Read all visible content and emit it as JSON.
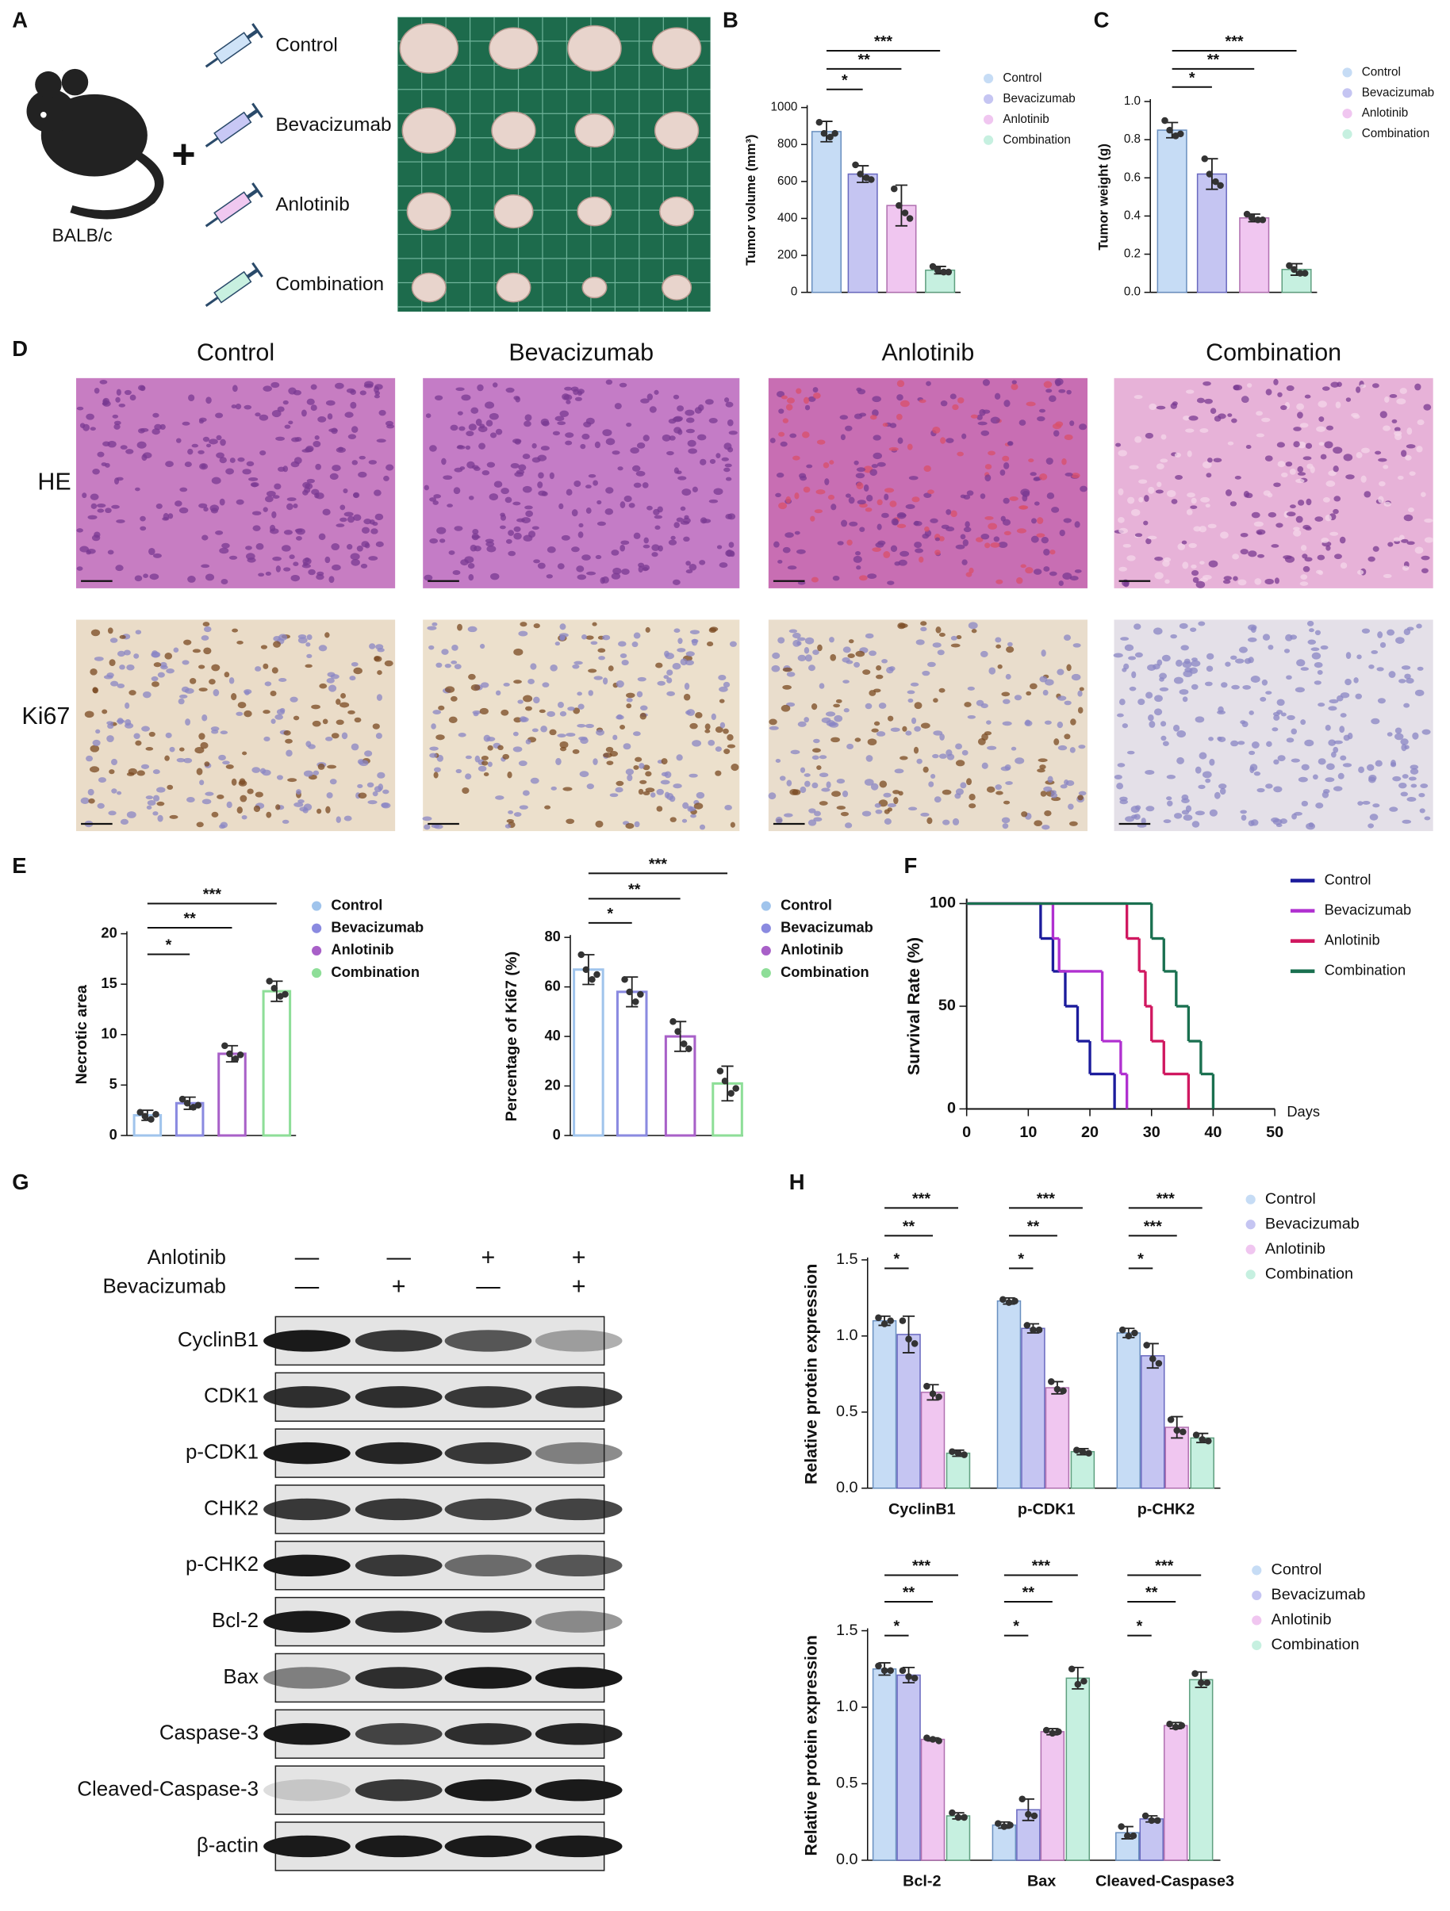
{
  "panels": {
    "letters": [
      "A",
      "B",
      "C",
      "D",
      "E",
      "F",
      "G",
      "H"
    ],
    "a": {
      "strain": "BALB/c",
      "plus": "+",
      "groups": [
        "Control",
        "Bevacizumab",
        "Anlotinib",
        "Combination"
      ]
    },
    "d": {
      "columns": [
        "Control",
        "Bevacizumab",
        "Anlotinib",
        "Combination"
      ],
      "rows": [
        "HE",
        "Ki67"
      ]
    },
    "g": {
      "treatments": [
        {
          "name": "Anlotinib",
          "signs": [
            "—",
            "—",
            "+",
            "+"
          ]
        },
        {
          "name": "Bevacizumab",
          "signs": [
            "—",
            "+",
            "—",
            "+"
          ]
        }
      ],
      "proteins": [
        "CyclinB1",
        "CDK1",
        "p-CDK1",
        "CHK2",
        "p-CHK2",
        "Bcl-2",
        "Bax",
        "Caspase-3",
        "Cleaved-Caspase-3",
        "β-actin"
      ]
    }
  },
  "chart_data": [
    {
      "type": "bar",
      "y_label": "Tumor volume (mm³)",
      "ylim": [
        0,
        1000
      ],
      "yticks": [
        0,
        200,
        400,
        600,
        800,
        1000
      ],
      "significance": [
        [
          "*",
          "**",
          "***"
        ]
      ],
      "series": [
        {
          "name": "Control",
          "fill": "#c6dcf5",
          "color": "#6a90c0",
          "values": [
            870
          ],
          "errors": [
            55
          ],
          "points": [
            [
              920,
              860,
              840,
              860
            ]
          ]
        },
        {
          "name": "Bevacizumab",
          "fill": "#c5c5f2",
          "color": "#6a6ac0",
          "values": [
            640
          ],
          "errors": [
            45
          ],
          "points": [
            [
              690,
              640,
              620,
              610
            ]
          ]
        },
        {
          "name": "Anlotinib",
          "fill": "#f0c6f0",
          "color": "#b070b0",
          "values": [
            470
          ],
          "errors": [
            110
          ],
          "points": [
            [
              560,
              470,
              430,
              400
            ]
          ]
        },
        {
          "name": "Combination",
          "fill": "#c6f0e0",
          "color": "#60a080",
          "values": [
            120
          ],
          "errors": [
            20
          ],
          "points": [
            [
              140,
              120,
              110,
              110
            ]
          ]
        }
      ]
    },
    {
      "type": "bar",
      "y_label": "Tumor weight (g)",
      "ylim": [
        0,
        1
      ],
      "yticks": [
        {
          "value": 0,
          "label": "0.0"
        },
        0.2,
        0.4,
        0.6,
        0.8,
        {
          "value": 1,
          "label": "1.0"
        }
      ],
      "significance": [
        [
          "*",
          "**",
          "***"
        ]
      ],
      "series": [
        {
          "name": "Control",
          "fill": "#c6dcf5",
          "color": "#6a90c0",
          "values": [
            0.85
          ],
          "errors": [
            0.04
          ],
          "points": [
            [
              0.9,
              0.85,
              0.82,
              0.83
            ]
          ]
        },
        {
          "name": "Bevacizumab",
          "fill": "#c5c5f2",
          "color": "#6a6ac0",
          "values": [
            0.62
          ],
          "errors": [
            0.08
          ],
          "points": [
            [
              0.7,
              0.62,
              0.58,
              0.56
            ]
          ]
        },
        {
          "name": "Anlotinib",
          "fill": "#f0c6f0",
          "color": "#b070b0",
          "values": [
            0.39
          ],
          "errors": [
            0.02
          ],
          "points": [
            [
              0.41,
              0.39,
              0.38,
              0.38
            ]
          ]
        },
        {
          "name": "Combination",
          "fill": "#c6f0e0",
          "color": "#60a080",
          "values": [
            0.12
          ],
          "errors": [
            0.03
          ],
          "points": [
            [
              0.14,
              0.12,
              0.1,
              0.1
            ]
          ]
        }
      ]
    },
    {
      "type": "bar",
      "y_label": "Necrotic area",
      "ylim": [
        0,
        20
      ],
      "yticks": [
        0,
        5,
        10,
        15,
        20
      ],
      "significance": [
        [
          "*",
          "**",
          "***"
        ]
      ],
      "series": [
        {
          "name": "Control",
          "fill": "#ffffff",
          "color": "#a0c4ec",
          "values": [
            2
          ],
          "errors": [
            0.5
          ],
          "points": [
            [
              2.3,
              1.9,
              1.6,
              2.1
            ]
          ]
        },
        {
          "name": "Bevacizumab",
          "fill": "#ffffff",
          "color": "#8a8ae0",
          "values": [
            3.2
          ],
          "errors": [
            0.6
          ],
          "points": [
            [
              3.6,
              3.2,
              2.8,
              3
            ]
          ]
        },
        {
          "name": "Anlotinib",
          "fill": "#ffffff",
          "color": "#a860c8",
          "values": [
            8.1
          ],
          "errors": [
            0.8
          ],
          "points": [
            [
              8.9,
              8.1,
              7.6,
              8
            ]
          ]
        },
        {
          "name": "Combination",
          "fill": "#ffffff",
          "color": "#8ede98",
          "values": [
            14.3
          ],
          "errors": [
            1
          ],
          "points": [
            [
              15.3,
              14.6,
              13.8,
              14
            ]
          ]
        }
      ]
    },
    {
      "type": "bar",
      "y_label": "Percentage of Ki67 (%)",
      "ylim": [
        0,
        80
      ],
      "yticks": [
        0,
        20,
        40,
        60,
        80
      ],
      "significance": [
        [
          "*",
          "**",
          "***"
        ]
      ],
      "series": [
        {
          "name": "Control",
          "fill": "#ffffff",
          "color": "#a0c4ec",
          "values": [
            67
          ],
          "errors": [
            6
          ],
          "points": [
            [
              73,
              67,
              63,
              65
            ]
          ]
        },
        {
          "name": "Bevacizumab",
          "fill": "#ffffff",
          "color": "#8a8ae0",
          "values": [
            58
          ],
          "errors": [
            6
          ],
          "points": [
            [
              63,
              58,
              54,
              57
            ]
          ]
        },
        {
          "name": "Anlotinib",
          "fill": "#ffffff",
          "color": "#a860c8",
          "values": [
            40
          ],
          "errors": [
            6
          ],
          "points": [
            [
              46,
              42,
              37,
              35
            ]
          ]
        },
        {
          "name": "Combination",
          "fill": "#ffffff",
          "color": "#8ede98",
          "values": [
            21
          ],
          "errors": [
            7
          ],
          "points": [
            [
              26,
              22,
              17,
              19
            ]
          ]
        }
      ]
    },
    {
      "type": "step",
      "y_label": "Survival Rate (%)",
      "x_label": "Days",
      "xlim": [
        0,
        50
      ],
      "xticks": [
        0,
        10,
        20,
        30,
        40,
        50
      ],
      "ylim": [
        0,
        100
      ],
      "yticks": [
        0,
        50,
        100
      ],
      "series": [
        {
          "name": "Control",
          "color": "#1c1c9c",
          "x": [
            0,
            12,
            14,
            16,
            18,
            20,
            24
          ],
          "values": [
            100,
            83,
            67,
            50,
            33,
            17,
            0
          ]
        },
        {
          "name": "Bevacizumab",
          "color": "#b030d0",
          "x": [
            0,
            14,
            15,
            22,
            25,
            26
          ],
          "values": [
            100,
            83,
            67,
            33,
            17,
            0
          ]
        },
        {
          "name": "Anlotinib",
          "color": "#d01860",
          "x": [
            0,
            26,
            28,
            29,
            30,
            32,
            36
          ],
          "values": [
            100,
            83,
            67,
            50,
            33,
            17,
            0
          ]
        },
        {
          "name": "Combination",
          "color": "#1a7050",
          "x": [
            0,
            30,
            32,
            34,
            36,
            38,
            40
          ],
          "values": [
            100,
            83,
            67,
            50,
            33,
            17,
            0
          ]
        }
      ]
    },
    {
      "type": "bar",
      "y_label": "Relative protein expression",
      "categories": [
        "CyclinB1",
        "p-CDK1",
        "p-CHK2"
      ],
      "ylim": [
        0,
        1.5
      ],
      "yticks": [
        {
          "value": 0,
          "label": "0.0"
        },
        0.5,
        {
          "value": 1,
          "label": "1.0"
        },
        1.5
      ],
      "significance": [
        [
          "*",
          "**",
          "***"
        ],
        [
          "*",
          "**",
          "***"
        ],
        [
          "*",
          "***",
          "***"
        ]
      ],
      "series": [
        {
          "name": "Control",
          "fill": "#c6dcf5",
          "color": "#6a90c0",
          "values": [
            1.1,
            1.23,
            1.02
          ],
          "errors": [
            0.03,
            0.02,
            0.03
          ],
          "points": [
            [
              1.12,
              1.08,
              1.1
            ],
            [
              1.24,
              1.22,
              1.23
            ],
            [
              1.04,
              1,
              1.02
            ]
          ]
        },
        {
          "name": "Bevacizumab",
          "fill": "#c5c5f2",
          "color": "#6a6ac0",
          "values": [
            1.01,
            1.05,
            0.87
          ],
          "errors": [
            0.12,
            0.03,
            0.08
          ],
          "points": [
            [
              1.1,
              0.98,
              0.95
            ],
            [
              1.07,
              1.04,
              1.04
            ],
            [
              0.94,
              0.85,
              0.82
            ]
          ]
        },
        {
          "name": "Anlotinib",
          "fill": "#f0c6f0",
          "color": "#b070b0",
          "values": [
            0.63,
            0.66,
            0.4
          ],
          "errors": [
            0.05,
            0.04,
            0.07
          ],
          "points": [
            [
              0.67,
              0.62,
              0.6
            ],
            [
              0.7,
              0.65,
              0.64
            ],
            [
              0.45,
              0.38,
              0.37
            ]
          ]
        },
        {
          "name": "Combination",
          "fill": "#c6f0e0",
          "color": "#60a080",
          "values": [
            0.23,
            0.24,
            0.33
          ],
          "errors": [
            0.02,
            0.02,
            0.03
          ],
          "points": [
            [
              0.24,
              0.23,
              0.22
            ],
            [
              0.25,
              0.24,
              0.23
            ],
            [
              0.35,
              0.32,
              0.31
            ]
          ]
        }
      ]
    },
    {
      "type": "bar",
      "y_label": "Relative protein expression",
      "categories": [
        "Bcl-2",
        "Bax",
        "Cleaved-Caspase3"
      ],
      "ylim": [
        0,
        1.5
      ],
      "yticks": [
        {
          "value": 0,
          "label": "0.0"
        },
        0.5,
        {
          "value": 1,
          "label": "1.0"
        },
        1.5
      ],
      "significance": [
        [
          "*",
          "**",
          "***"
        ],
        [
          "*",
          "**",
          "***"
        ],
        [
          "*",
          "**",
          "***"
        ]
      ],
      "series": [
        {
          "name": "Control",
          "fill": "#c6dcf5",
          "color": "#6a90c0",
          "values": [
            1.25,
            0.23,
            0.18
          ],
          "errors": [
            0.04,
            0.02,
            0.04
          ],
          "points": [
            [
              1.27,
              1.24,
              1.24
            ],
            [
              0.24,
              0.22,
              0.23
            ],
            [
              0.22,
              0.16,
              0.16
            ]
          ]
        },
        {
          "name": "Bevacizumab",
          "fill": "#c5c5f2",
          "color": "#6a6ac0",
          "values": [
            1.21,
            0.33,
            0.27
          ],
          "errors": [
            0.05,
            0.07,
            0.02
          ],
          "points": [
            [
              1.24,
              1.2,
              1.19
            ],
            [
              0.4,
              0.3,
              0.29
            ],
            [
              0.29,
              0.26,
              0.26
            ]
          ]
        },
        {
          "name": "Anlotinib",
          "fill": "#f0c6f0",
          "color": "#b070b0",
          "values": [
            0.79,
            0.84,
            0.88
          ],
          "errors": [
            0.01,
            0.02,
            0.02
          ],
          "points": [
            [
              0.8,
              0.79,
              0.78
            ],
            [
              0.85,
              0.83,
              0.84
            ],
            [
              0.89,
              0.87,
              0.88
            ]
          ]
        },
        {
          "name": "Combination",
          "fill": "#c6f0e0",
          "color": "#60a080",
          "values": [
            0.29,
            1.19,
            1.18
          ],
          "errors": [
            0.02,
            0.07,
            0.05
          ],
          "points": [
            [
              0.31,
              0.28,
              0.28
            ],
            [
              1.25,
              1.15,
              1.17
            ],
            [
              1.22,
              1.16,
              1.16
            ]
          ]
        }
      ]
    }
  ]
}
